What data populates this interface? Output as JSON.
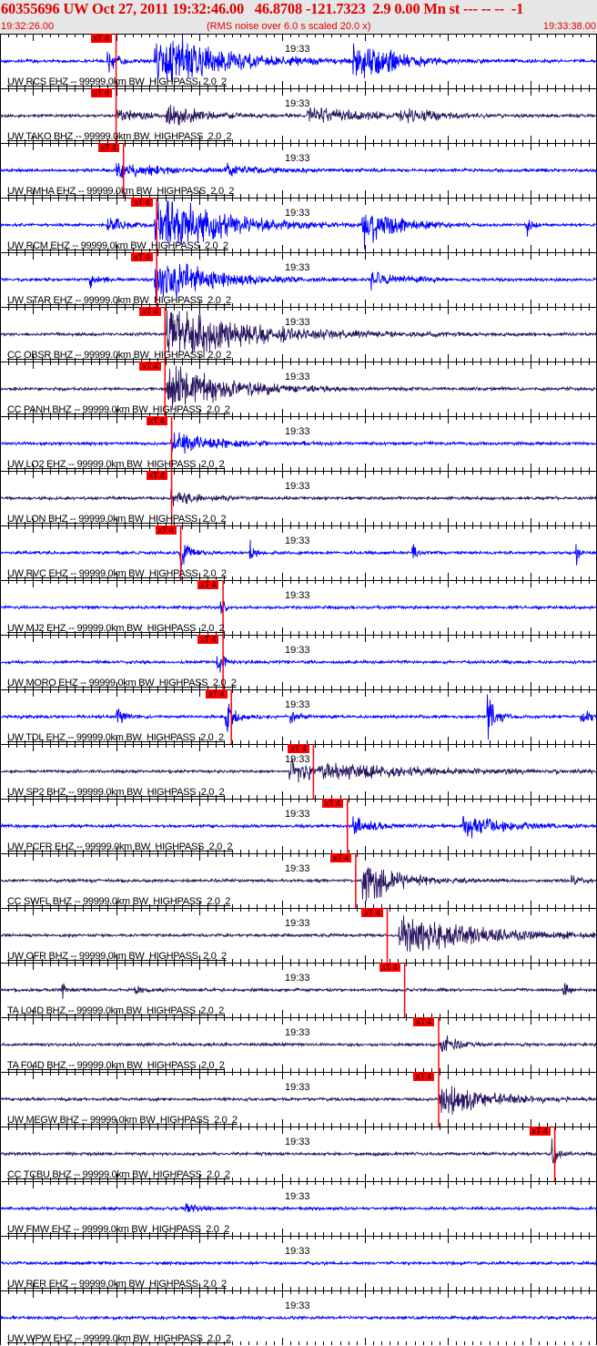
{
  "header": {
    "title": "60355696 UW Oct 27, 2011 19:32:46.00   46.8708 -121.7323  2.9 0.00 Mn st --- -- --  -1",
    "start_time": "19:32:26.00",
    "note": "(RMS noise over 6.0 s scaled 20.0 x)",
    "end_time": "19:33:38.00"
  },
  "colors": {
    "header_text": "#e00000",
    "pick": "#ff0000",
    "blue": "#0000ff",
    "purple": "#2a1660",
    "header_bg": "#e6e6e6"
  },
  "time_label": "19:33",
  "pick_label": "xT 4",
  "traces": [
    {
      "label": "UW RCS EHZ -- 99999.0km BW  HIGHPASS  2.0  2",
      "color": "blue",
      "pick": "19:32:40.0"
    },
    {
      "label": "UW TAKO BHZ -- 99999.0km BW  HIGHPASS  2.0  2",
      "color": "purple",
      "pick": "19:32:40.0"
    },
    {
      "label": "UW RMHA EHZ -- 99999.0km BW  HIGHPASS  2.0  2",
      "color": "blue",
      "pick": "19:32:40.9"
    },
    {
      "label": "UW RCM EHZ -- 99999.0km BW  HIGHPASS  2.0  2",
      "color": "blue",
      "pick": "19:32:44.9"
    },
    {
      "label": "UW STAR EHZ -- 99999.0km BW  HIGHPASS  2.0  2",
      "color": "blue",
      "pick": "19:32:44.9"
    },
    {
      "label": "CC OBSR BHZ -- 99999.0km BW  HIGHPASS  2.0  2",
      "color": "purple",
      "pick": "19:32:45.9"
    },
    {
      "label": "CC PANH BHZ -- 99999.0km BW  HIGHPASS  2.0  2",
      "color": "purple",
      "pick": "19:32:45.9"
    },
    {
      "label": "UW LO2 EHZ -- 99999.0km BW  HIGHPASS  2.0  2",
      "color": "blue",
      "pick": "19:32:46.7"
    },
    {
      "label": "UW LON BHZ -- 99999.0km BW  HIGHPASS  2.0  2",
      "color": "purple",
      "pick": "19:32:46.7"
    },
    {
      "label": "UW RVC EHZ -- 99999.0km BW  HIGHPASS  2.0  2",
      "color": "blue",
      "pick": "19:32:47.8"
    },
    {
      "label": "UW MJ2 EHZ -- 99999.0km BW  HIGHPASS  2.0  2",
      "color": "blue",
      "pick": "19:32:52.9"
    },
    {
      "label": "UW MORO EHZ -- 99999.0km BW  HIGHPASS  2.0  2",
      "color": "blue",
      "pick": "19:32:52.9"
    },
    {
      "label": "UW TDL EHZ -- 99999.0km BW  HIGHPASS  2.0  2",
      "color": "blue",
      "pick": "19:32:53.9"
    },
    {
      "label": "UW SP2 BHZ -- 99999.0km BW  HIGHPASS  2.0  2",
      "color": "purple",
      "pick": "19:33:03.8"
    },
    {
      "label": "UW PCFR EHZ -- 99999.0km BW  HIGHPASS  2.0  2",
      "color": "blue",
      "pick": "19:33:07.9"
    },
    {
      "label": "CC SWFL BHZ -- 99999.0km BW  HIGHPASS  2.0  2",
      "color": "purple",
      "pick": "19:33:08.9"
    },
    {
      "label": "UW OFR BHZ -- 99999.0km BW  HIGHPASS  2.0  2",
      "color": "purple",
      "pick": "19:33:12.7"
    },
    {
      "label": "TA L04D BHZ -- 99999.0km BW  HIGHPASS  2.0  2",
      "color": "purple",
      "pick": "19:33:14.8"
    },
    {
      "label": "TA F04D BHZ -- 99999.0km BW  HIGHPASS  2.0  2",
      "color": "purple",
      "pick": "19:33:18.9"
    },
    {
      "label": "UW MEGW BHZ -- 99999.0km BW  HIGHPASS  2.0  2",
      "color": "purple",
      "pick": "19:33:18.9"
    },
    {
      "label": "CC TCBU BHZ -- 99999.0km BW  HIGHPASS  2.0  2",
      "color": "purple",
      "pick": "19:33:32.9"
    },
    {
      "label": "UW FMW EHZ -- 99999.0km BW  HIGHPASS  2.0  2",
      "color": "blue",
      "pick": null
    },
    {
      "label": "UW RER EHZ -- 99999.0km BW  HIGHPASS  2.0  2",
      "color": "blue",
      "pick": null
    },
    {
      "label": "UW WPW EHZ -- 99999.0km BW  HIGHPASS  2.0  2",
      "color": "blue",
      "pick": null
    }
  ]
}
